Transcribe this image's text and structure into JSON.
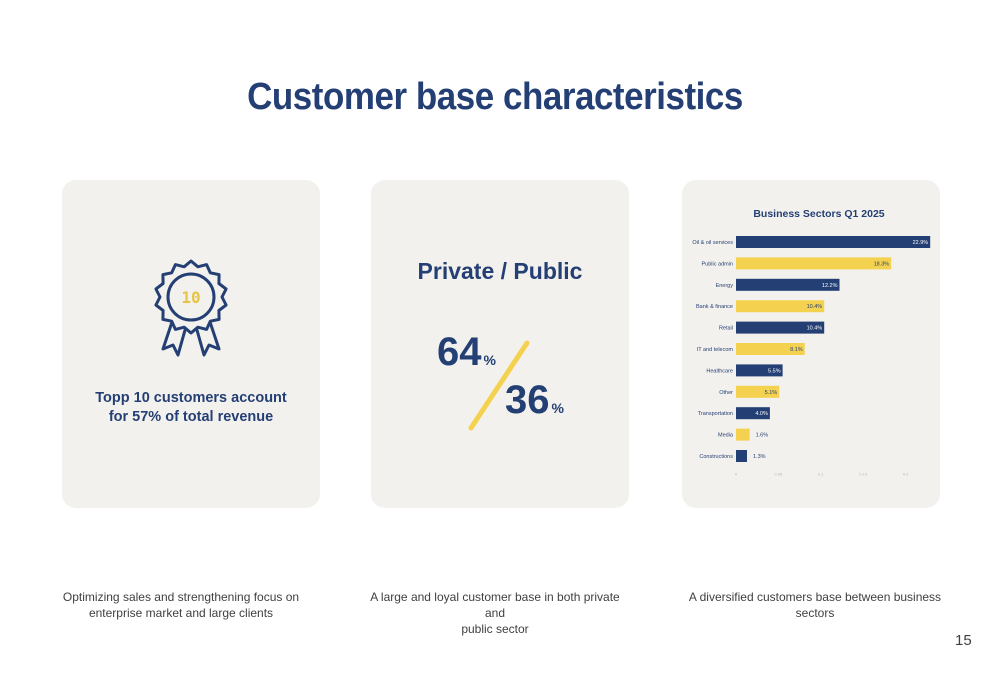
{
  "title": "Customer base characteristics",
  "cards": {
    "top10": {
      "badge_number": "10",
      "text_line1": "Topp 10 customers account",
      "text_line2": "for 57% of total revenue",
      "icon": "award-ribbon-icon"
    },
    "private_public": {
      "title": "Private / Public",
      "private_value": "64",
      "public_value": "36",
      "unit": "%"
    }
  },
  "captions": {
    "c1_line1": "Optimizing sales and strengthening focus on",
    "c1_line2": "enterprise market and large clients",
    "c2_line1": "A large and loyal customer base in both private and",
    "c2_line2": "public sector",
    "c3_line1": "A diversified customers base between business",
    "c3_line2": "sectors"
  },
  "page_number": "15",
  "colors": {
    "navy": "#243f74",
    "yellow": "#f4d24f",
    "card_bg": "#f3f1ed"
  },
  "chart_data": {
    "type": "bar",
    "orientation": "horizontal",
    "title": "Business Sectors Q1 2025",
    "categories": [
      "Oil & oil services",
      "Public admin",
      "Energy",
      "Bank & finance",
      "Retail",
      "IT and telecom",
      "Healthcare",
      "Other",
      "Transportation",
      "Media",
      "Constructions"
    ],
    "values": [
      22.9,
      18.3,
      12.2,
      10.4,
      10.4,
      8.1,
      5.5,
      5.1,
      4.0,
      1.6,
      1.3
    ],
    "value_labels": [
      "22.9%",
      "18.3%",
      "12.2%",
      "10.4%",
      "10.4%",
      "8.1%",
      "5.5%",
      "5.1%",
      "4.0%",
      "1.6%",
      "1.3%"
    ],
    "bar_colors": [
      "#243f74",
      "#f4d24f",
      "#243f74",
      "#f4d24f",
      "#243f74",
      "#f4d24f",
      "#243f74",
      "#f4d24f",
      "#243f74",
      "#f4d24f",
      "#243f74"
    ],
    "xlim": [
      0,
      0.25
    ],
    "xticks": [
      "0",
      "0.05",
      "0.1",
      "0.15",
      "0.2",
      "0.25"
    ],
    "xlabel": "",
    "ylabel": "",
    "grid": false,
    "legend": "none"
  }
}
